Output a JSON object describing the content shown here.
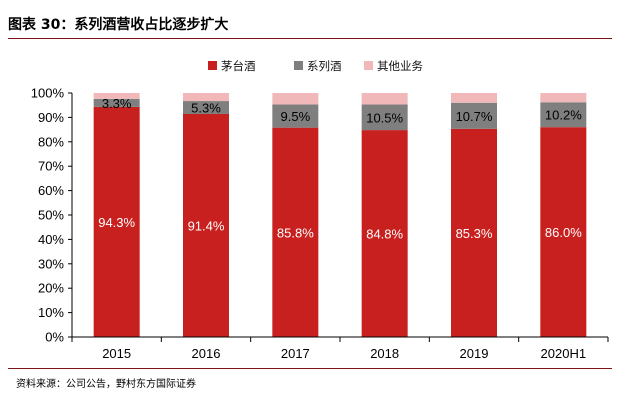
{
  "title": "图表 30：系列酒营收占比逐步扩大",
  "source": "资料来源：公司公告，野村东方国际证券",
  "colors": {
    "moutai": "#c8201f",
    "series": "#7f7f7f",
    "other": "#f0b8b8",
    "accent": "#7b1518"
  },
  "chart_data": {
    "type": "bar",
    "stacked": true,
    "title": "",
    "xlabel": "",
    "ylabel": "",
    "ylim": [
      0,
      100
    ],
    "y_ticks": [
      "0%",
      "10%",
      "20%",
      "30%",
      "40%",
      "50%",
      "60%",
      "70%",
      "80%",
      "90%",
      "100%"
    ],
    "categories": [
      "2015",
      "2016",
      "2017",
      "2018",
      "2019",
      "2020H1"
    ],
    "legend_position": "top",
    "series": [
      {
        "name": "茅台酒",
        "key": "moutai",
        "values": [
          94.3,
          91.4,
          85.8,
          84.8,
          85.3,
          86.0
        ],
        "labels": [
          "94.3%",
          "91.4%",
          "85.8%",
          "84.8%",
          "85.3%",
          "86.0%"
        ]
      },
      {
        "name": "系列酒",
        "key": "series",
        "values": [
          3.3,
          5.3,
          9.5,
          10.5,
          10.7,
          10.2
        ],
        "labels": [
          "3.3%",
          "5.3%",
          "9.5%",
          "10.5%",
          "10.7%",
          "10.2%"
        ]
      },
      {
        "name": "其他业务",
        "key": "other",
        "values": [
          2.4,
          3.3,
          4.7,
          4.7,
          4.0,
          3.8
        ],
        "labels": []
      }
    ]
  }
}
